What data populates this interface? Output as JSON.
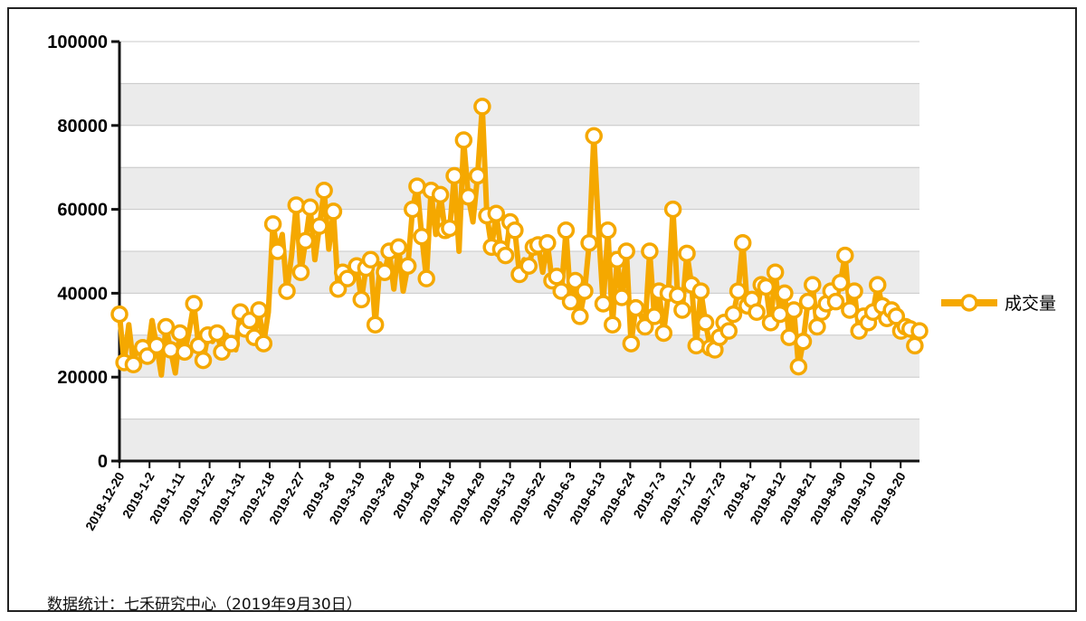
{
  "footnote": "数据统计：七禾研究中心（2019年9月30日）",
  "chart_data": {
    "type": "line",
    "ylim": [
      0,
      100000
    ],
    "y_ticks": [
      0,
      20000,
      40000,
      60000,
      80000,
      100000
    ],
    "grid": true,
    "legend_position": "right",
    "color": "#f5a800",
    "x_tick_labels": [
      "2018-12-20",
      "2019-1-2",
      "2019-1-11",
      "2019-1-22",
      "2019-1-31",
      "2019-2-18",
      "2019-2-27",
      "2019-3-8",
      "2019-3-19",
      "2019-3-28",
      "2019-4-9",
      "2019-4-18",
      "2019-4-29",
      "2019-5-13",
      "2019-5-22",
      "2019-6-3",
      "2019-6-13",
      "2019-6-24",
      "2019-7-3",
      "2019-7-12",
      "2019-7-23",
      "2019-8-1",
      "2019-8-12",
      "2019-8-21",
      "2019-8-30",
      "2019-9-10",
      "2019-9-20"
    ],
    "series": [
      {
        "name": "成交量",
        "values": [
          35000,
          23500,
          32500,
          23000,
          28000,
          27000,
          25000,
          33500,
          27500,
          20500,
          32000,
          26500,
          21000,
          30500,
          26000,
          31000,
          37500,
          27500,
          24000,
          30000,
          28500,
          30500,
          26000,
          30000,
          28000,
          26500,
          35500,
          31500,
          33500,
          29500,
          36000,
          28000,
          35500,
          56500,
          50000,
          54000,
          40500,
          49000,
          61000,
          45000,
          52500,
          60500,
          48000,
          56000,
          64500,
          50500,
          59500,
          41000,
          45000,
          43500,
          47000,
          46500,
          38500,
          46000,
          48000,
          32500,
          47000,
          45000,
          50000,
          41000,
          51000,
          40500,
          46500,
          60000,
          65500,
          53500,
          43500,
          64500,
          54000,
          63500,
          55000,
          55500,
          68000,
          50000,
          76500,
          63000,
          57000,
          68000,
          84500,
          58500,
          51000,
          59000,
          50500,
          49000,
          57000,
          55000,
          44500,
          48000,
          46500,
          51000,
          51500,
          45000,
          52000,
          43000,
          44000,
          40500,
          55000,
          38000,
          43000,
          34500,
          40500,
          52000,
          77500,
          55000,
          37500,
          55000,
          32500,
          48000,
          39000,
          50000,
          28000,
          36500,
          35000,
          32000,
          50000,
          34500,
          40500,
          30500,
          40000,
          60000,
          39500,
          36000,
          49500,
          42000,
          27500,
          40500,
          33000,
          27000,
          26500,
          29500,
          33000,
          31000,
          35000,
          40500,
          52000,
          37000,
          38500,
          35500,
          42000,
          41500,
          33000,
          45000,
          35000,
          40000,
          29500,
          36000,
          22500,
          28500,
          38000,
          42000,
          32000,
          35500,
          37500,
          40500,
          38000,
          42500,
          49000,
          36000,
          40500,
          31000,
          34500,
          33000,
          35500,
          42000,
          37000,
          34000,
          36000,
          34500,
          31000,
          32000,
          31500,
          27500,
          31000
        ]
      }
    ],
    "marker_indices": [
      0,
      1,
      3,
      5,
      6,
      8,
      10,
      11,
      13,
      14,
      16,
      17,
      18,
      19,
      21,
      22,
      24,
      26,
      27,
      28,
      29,
      30,
      31,
      33,
      34,
      36,
      38,
      39,
      40,
      41,
      43,
      44,
      46,
      47,
      48,
      49,
      51,
      52,
      53,
      54,
      55,
      57,
      58,
      60,
      62,
      63,
      64,
      65,
      66,
      67,
      69,
      70,
      71,
      72,
      74,
      75,
      77,
      78,
      79,
      80,
      81,
      82,
      83,
      84,
      85,
      86,
      88,
      89,
      90,
      92,
      93,
      94,
      95,
      96,
      97,
      98,
      99,
      100,
      101,
      102,
      104,
      105,
      106,
      107,
      108,
      109,
      110,
      111,
      113,
      114,
      115,
      116,
      117,
      118,
      119,
      120,
      121,
      122,
      123,
      124,
      125,
      126,
      127,
      128,
      129,
      130,
      131,
      132,
      133,
      134,
      135,
      136,
      137,
      138,
      139,
      140,
      141,
      142,
      143,
      144,
      145,
      146,
      147,
      148,
      149,
      150,
      151,
      152,
      153,
      154,
      155,
      156,
      157,
      158,
      159,
      160,
      161,
      162,
      163,
      164,
      165,
      166,
      167,
      168,
      169,
      170,
      171,
      172,
      173,
      174,
      175,
      176,
      177,
      178,
      179,
      180
    ]
  }
}
